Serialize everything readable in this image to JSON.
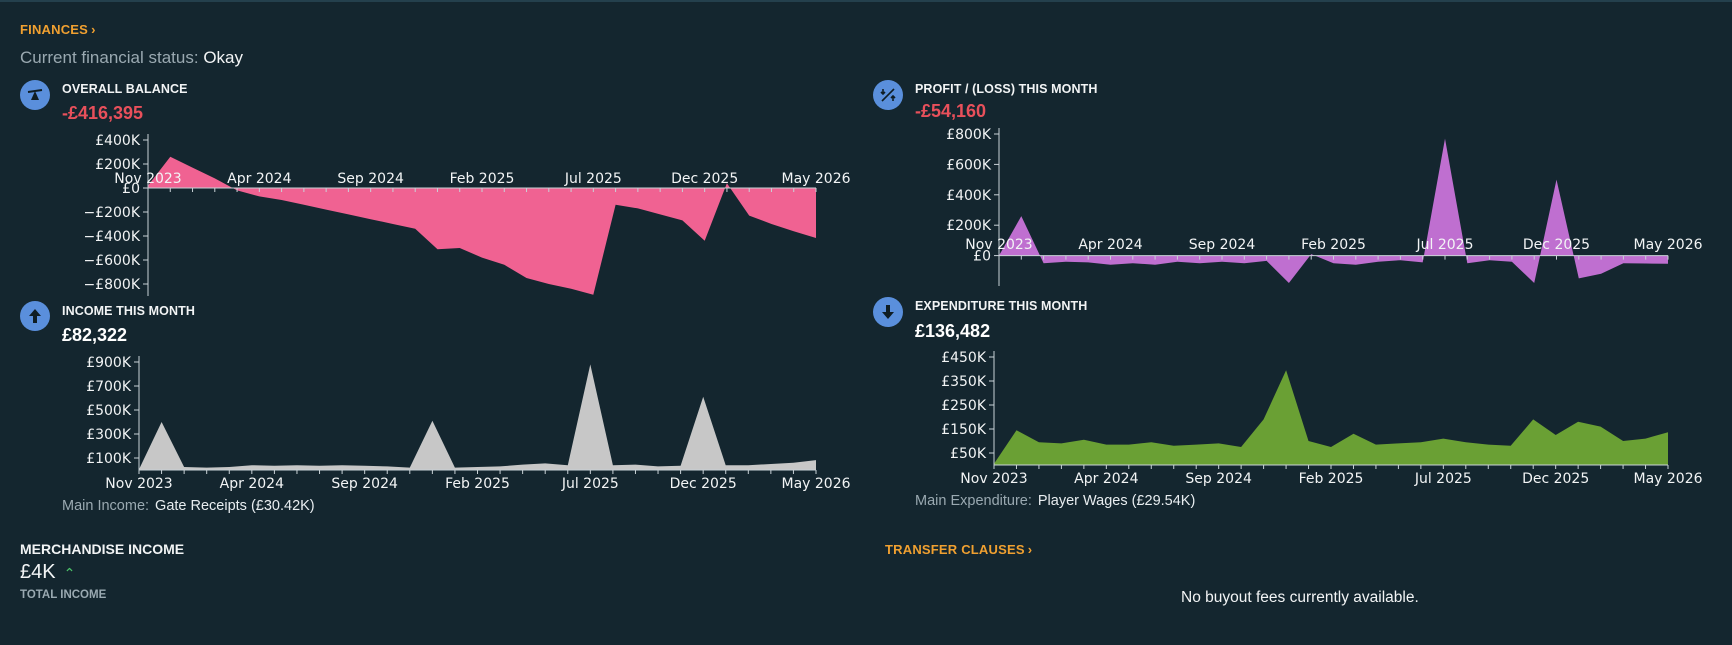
{
  "finances_header": "FINANCES",
  "status": {
    "label": "Current financial status:",
    "value": "Okay"
  },
  "months": [
    "Nov 2023",
    "Dec 2023",
    "Jan 2024",
    "Feb 2024",
    "Mar 2024",
    "Apr 2024",
    "May 2024",
    "Jun 2024",
    "Jul 2024",
    "Aug 2024",
    "Sep 2024",
    "Oct 2024",
    "Nov 2024",
    "Dec 2024",
    "Jan 2025",
    "Feb 2025",
    "Mar 2025",
    "Apr 2025",
    "May 2025",
    "Jun 2025",
    "Jul 2025",
    "Aug 2025",
    "Sep 2025",
    "Oct 2025",
    "Nov 2025",
    "Dec 2025",
    "Jan 2026",
    "Feb 2026",
    "Mar 2026",
    "Apr 2026",
    "May 2026"
  ],
  "x_labels": [
    "Nov 2023",
    "Apr 2024",
    "Sep 2024",
    "Feb 2025",
    "Jul 2025",
    "Dec 2025",
    "May 2026"
  ],
  "panels": {
    "balance": {
      "title": "OVERALL BALANCE",
      "value": "-£416,395"
    },
    "profit": {
      "title": "PROFIT / (LOSS) THIS MONTH",
      "value": "-£54,160"
    },
    "income": {
      "title": "INCOME THIS MONTH",
      "value": "£82,322",
      "main_label": "Main Income:",
      "main_value": "Gate Receipts (£30.42K)"
    },
    "expenditure": {
      "title": "EXPENDITURE THIS MONTH",
      "value": "£136,482",
      "main_label": "Main Expenditure:",
      "main_value": "Player Wages (£29.54K)"
    }
  },
  "merchandise": {
    "title": "MERCHANDISE INCOME",
    "value": "£4K",
    "sub": "TOTAL INCOME"
  },
  "transfer_clauses": {
    "header": "TRANSFER CLAUSES",
    "empty_message": "No buyout fees currently available."
  },
  "chart_data": [
    {
      "id": "balance",
      "type": "area",
      "title": "OVERALL BALANCE",
      "color": "#f06292",
      "ylim": [
        -900000,
        400000
      ],
      "yticks": [
        400000,
        200000,
        0,
        -200000,
        -400000,
        -600000,
        -800000
      ],
      "ytick_labels": [
        "£400K",
        "£200K",
        "£0",
        "−£200K",
        "−£400K",
        "−£600K",
        "−£800K"
      ],
      "values": [
        20000,
        260000,
        170000,
        80000,
        -20000,
        -70000,
        -100000,
        -140000,
        -180000,
        -220000,
        -260000,
        -300000,
        -340000,
        -510000,
        -500000,
        -580000,
        -640000,
        -750000,
        -800000,
        -840000,
        -890000,
        -140000,
        -170000,
        -220000,
        -270000,
        -440000,
        40000,
        -230000,
        -300000,
        -360000,
        -416395
      ]
    },
    {
      "id": "profit",
      "type": "area",
      "title": "PROFIT / (LOSS) THIS MONTH",
      "color": "#bf6fd0",
      "ylim": [
        -200000,
        800000
      ],
      "yticks": [
        800000,
        600000,
        400000,
        200000,
        0
      ],
      "ytick_labels": [
        "£800K",
        "£600K",
        "£400K",
        "£200K",
        "£0"
      ],
      "values": [
        0,
        260000,
        -50000,
        -40000,
        -45000,
        -60000,
        -50000,
        -60000,
        -40000,
        -50000,
        -40000,
        -50000,
        -35000,
        -180000,
        10000,
        -50000,
        -60000,
        -40000,
        -30000,
        -45000,
        770000,
        -50000,
        -30000,
        -40000,
        -180000,
        500000,
        -150000,
        -120000,
        -50000,
        -52000,
        -54160
      ]
    },
    {
      "id": "income",
      "type": "area",
      "title": "INCOME THIS MONTH",
      "color": "#c7c7c7",
      "ylim": [
        0,
        900000
      ],
      "yticks": [
        900000,
        700000,
        500000,
        300000,
        100000
      ],
      "ytick_labels": [
        "£900K",
        "£700K",
        "£500K",
        "£300K",
        "£100K"
      ],
      "values": [
        5000,
        400000,
        25000,
        20000,
        25000,
        40000,
        35000,
        40000,
        35000,
        40000,
        35000,
        30000,
        20000,
        410000,
        20000,
        25000,
        30000,
        45000,
        55000,
        40000,
        880000,
        40000,
        45000,
        30000,
        35000,
        610000,
        40000,
        40000,
        50000,
        60000,
        82322
      ]
    },
    {
      "id": "expenditure",
      "type": "area",
      "title": "EXPENDITURE THIS MONTH",
      "color": "#6aa034",
      "ylim": [
        0,
        450000
      ],
      "yticks": [
        450000,
        350000,
        250000,
        150000,
        50000
      ],
      "ytick_labels": [
        "£450K",
        "£350K",
        "£250K",
        "£150K",
        "£50K"
      ],
      "values": [
        5000,
        145000,
        95000,
        90000,
        105000,
        85000,
        85000,
        95000,
        80000,
        85000,
        90000,
        75000,
        190000,
        395000,
        100000,
        75000,
        130000,
        85000,
        90000,
        95000,
        110000,
        95000,
        85000,
        80000,
        190000,
        125000,
        180000,
        160000,
        100000,
        110000,
        136482
      ]
    }
  ]
}
